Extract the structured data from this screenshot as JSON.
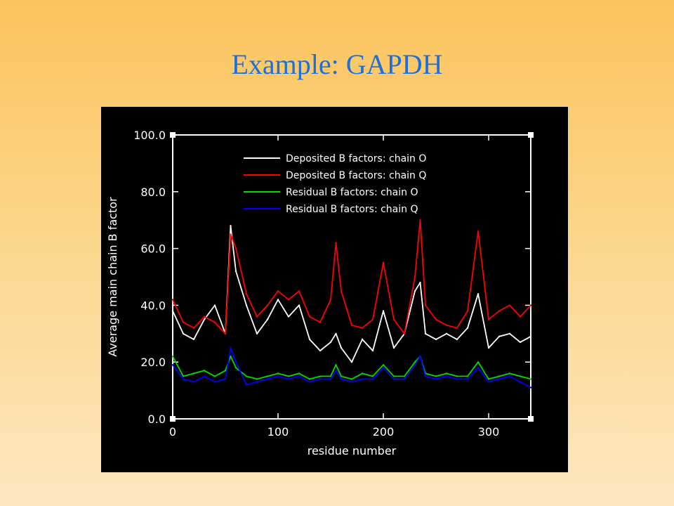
{
  "slide": {
    "title": "Example: GAPDH"
  },
  "chart_data": {
    "type": "line",
    "title": "",
    "xlabel": "residue number",
    "ylabel": "Average main chain B factor",
    "xlim": [
      0,
      340
    ],
    "ylim": [
      0,
      100
    ],
    "xticks": [
      0,
      100,
      200,
      300
    ],
    "xtick_labels": [
      "0",
      "100",
      "200",
      "300"
    ],
    "yticks": [
      0,
      20,
      40,
      60,
      80,
      100
    ],
    "ytick_labels": [
      "0.0",
      "20.0",
      "40.0",
      "60.0",
      "80.0",
      "100.0"
    ],
    "grid": false,
    "legend_position": "top-right",
    "background": "#000000",
    "x": [
      0,
      10,
      20,
      30,
      40,
      50,
      55,
      60,
      70,
      80,
      90,
      100,
      110,
      120,
      130,
      140,
      150,
      155,
      160,
      170,
      180,
      190,
      200,
      210,
      220,
      230,
      235,
      240,
      250,
      260,
      270,
      280,
      290,
      300,
      310,
      320,
      330,
      340
    ],
    "series": [
      {
        "name": "Deposited B factors: chain O",
        "color": "#ffffff",
        "values": [
          38,
          30,
          28,
          35,
          40,
          30,
          68,
          52,
          40,
          30,
          35,
          42,
          36,
          40,
          28,
          24,
          27,
          30,
          25,
          20,
          28,
          24,
          38,
          25,
          30,
          45,
          48,
          30,
          28,
          30,
          28,
          32,
          44,
          25,
          29,
          30,
          27,
          29
        ]
      },
      {
        "name": "Deposited B factors: chain Q",
        "color": "#ff0000",
        "values": [
          42,
          34,
          32,
          36,
          34,
          30,
          65,
          60,
          44,
          36,
          40,
          45,
          42,
          45,
          36,
          34,
          42,
          62,
          45,
          33,
          32,
          35,
          55,
          35,
          30,
          50,
          70,
          40,
          35,
          33,
          32,
          38,
          66,
          35,
          38,
          40,
          36,
          40
        ]
      },
      {
        "name": "Residual B factors: chain O",
        "color": "#00dd00",
        "values": [
          22,
          15,
          16,
          17,
          15,
          17,
          22,
          18,
          15,
          14,
          15,
          16,
          15,
          16,
          14,
          15,
          15,
          19,
          15,
          14,
          16,
          15,
          19,
          15,
          15,
          20,
          22,
          16,
          15,
          16,
          15,
          15,
          20,
          14,
          15,
          16,
          15,
          14
        ]
      },
      {
        "name": "Residual B factors: chain Q",
        "color": "#0000ff",
        "values": [
          19,
          14,
          13,
          15,
          13,
          14,
          25,
          20,
          12,
          13,
          14,
          15,
          14,
          15,
          13,
          14,
          14,
          17,
          14,
          13,
          14,
          14,
          18,
          14,
          14,
          19,
          22,
          15,
          14,
          15,
          14,
          14,
          18,
          13,
          14,
          15,
          13,
          11
        ]
      }
    ]
  }
}
